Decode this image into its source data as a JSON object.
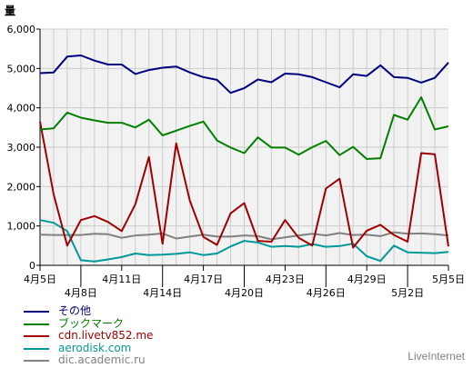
{
  "chart_data": {
    "type": "line",
    "ylabel": "量",
    "ylim": [
      0,
      6000
    ],
    "yticks": [
      0,
      1000,
      2000,
      3000,
      4000,
      5000,
      6000
    ],
    "ytick_labels": [
      "0",
      "1,000",
      "2,000",
      "3,000",
      "4,000",
      "5,000",
      "6,000"
    ],
    "grid": true,
    "legend_position": "bottom-left",
    "x": [
      "4月5日",
      "4月6日",
      "4月7日",
      "4月8日",
      "4月9日",
      "4月10日",
      "4月11日",
      "4月12日",
      "4月13日",
      "4月14日",
      "4月15日",
      "4月16日",
      "4月17日",
      "4月18日",
      "4月19日",
      "4月20日",
      "4月21日",
      "4月22日",
      "4月23日",
      "4月24日",
      "4月25日",
      "4月26日",
      "4月27日",
      "4月28日",
      "4月29日",
      "4月30日",
      "5月1日",
      "5月2日",
      "5月3日",
      "5月4日",
      "5月5日"
    ],
    "xtick_labels": [
      {
        "index": 0,
        "label": "4月5日",
        "row": 1
      },
      {
        "index": 3,
        "label": "4月8日",
        "row": 2
      },
      {
        "index": 6,
        "label": "4月11日",
        "row": 1
      },
      {
        "index": 9,
        "label": "4月14日",
        "row": 2
      },
      {
        "index": 12,
        "label": "4月17日",
        "row": 1
      },
      {
        "index": 15,
        "label": "4月20日",
        "row": 2
      },
      {
        "index": 18,
        "label": "4月23日",
        "row": 1
      },
      {
        "index": 21,
        "label": "4月26日",
        "row": 2
      },
      {
        "index": 24,
        "label": "4月29日",
        "row": 1
      },
      {
        "index": 27,
        "label": "5月2日",
        "row": 2
      },
      {
        "index": 30,
        "label": "5月5日",
        "row": 1
      }
    ],
    "series": [
      {
        "name": "その他",
        "color": "#000080",
        "values": [
          4880,
          4900,
          5300,
          5330,
          5200,
          5100,
          5100,
          4860,
          4960,
          5020,
          5050,
          4900,
          4780,
          4710,
          4380,
          4500,
          4720,
          4650,
          4870,
          4850,
          4780,
          4650,
          4520,
          4850,
          4810,
          5080,
          4780,
          4760,
          4640,
          4760,
          5150
        ]
      },
      {
        "name": "ブックマーク",
        "color": "#008000",
        "values": [
          3450,
          3480,
          3880,
          3750,
          3680,
          3620,
          3620,
          3500,
          3700,
          3300,
          3420,
          3540,
          3650,
          3170,
          2990,
          2850,
          3250,
          2990,
          2990,
          2810,
          3000,
          3160,
          2800,
          3010,
          2700,
          2720,
          3820,
          3700,
          4270,
          3450,
          3530
        ]
      },
      {
        "name": "cdn.livetv852.me",
        "color": "#a00000",
        "values": [
          3650,
          1800,
          500,
          1150,
          1250,
          1100,
          870,
          1550,
          2750,
          550,
          3100,
          1650,
          720,
          520,
          1320,
          1580,
          620,
          600,
          1150,
          700,
          500,
          1950,
          2200,
          450,
          880,
          1030,
          770,
          600,
          2850,
          2820,
          480
        ]
      },
      {
        "name": "aerodisk.com",
        "color": "#009999",
        "values": [
          1150,
          1080,
          870,
          130,
          100,
          150,
          210,
          300,
          260,
          270,
          290,
          330,
          260,
          300,
          480,
          620,
          580,
          470,
          490,
          470,
          540,
          470,
          490,
          550,
          230,
          110,
          500,
          330,
          320,
          310,
          340
        ]
      },
      {
        "name": "dic.academic.ru",
        "color": "#808080",
        "values": [
          780,
          770,
          770,
          770,
          800,
          790,
          700,
          760,
          780,
          810,
          680,
          730,
          780,
          730,
          730,
          760,
          740,
          660,
          710,
          760,
          800,
          760,
          820,
          770,
          780,
          740,
          840,
          800,
          810,
          790,
          760
        ]
      }
    ]
  },
  "legend": [
    {
      "label": "その他",
      "color": "#000080"
    },
    {
      "label": "ブックマーク",
      "color": "#008000"
    },
    {
      "label": "cdn.livetv852.me",
      "color": "#a00000"
    },
    {
      "label": "aerodisk.com",
      "color": "#009999"
    },
    {
      "label": "dic.academic.ru",
      "color": "#808080"
    }
  ],
  "branding": {
    "text": "LiveInternet"
  }
}
